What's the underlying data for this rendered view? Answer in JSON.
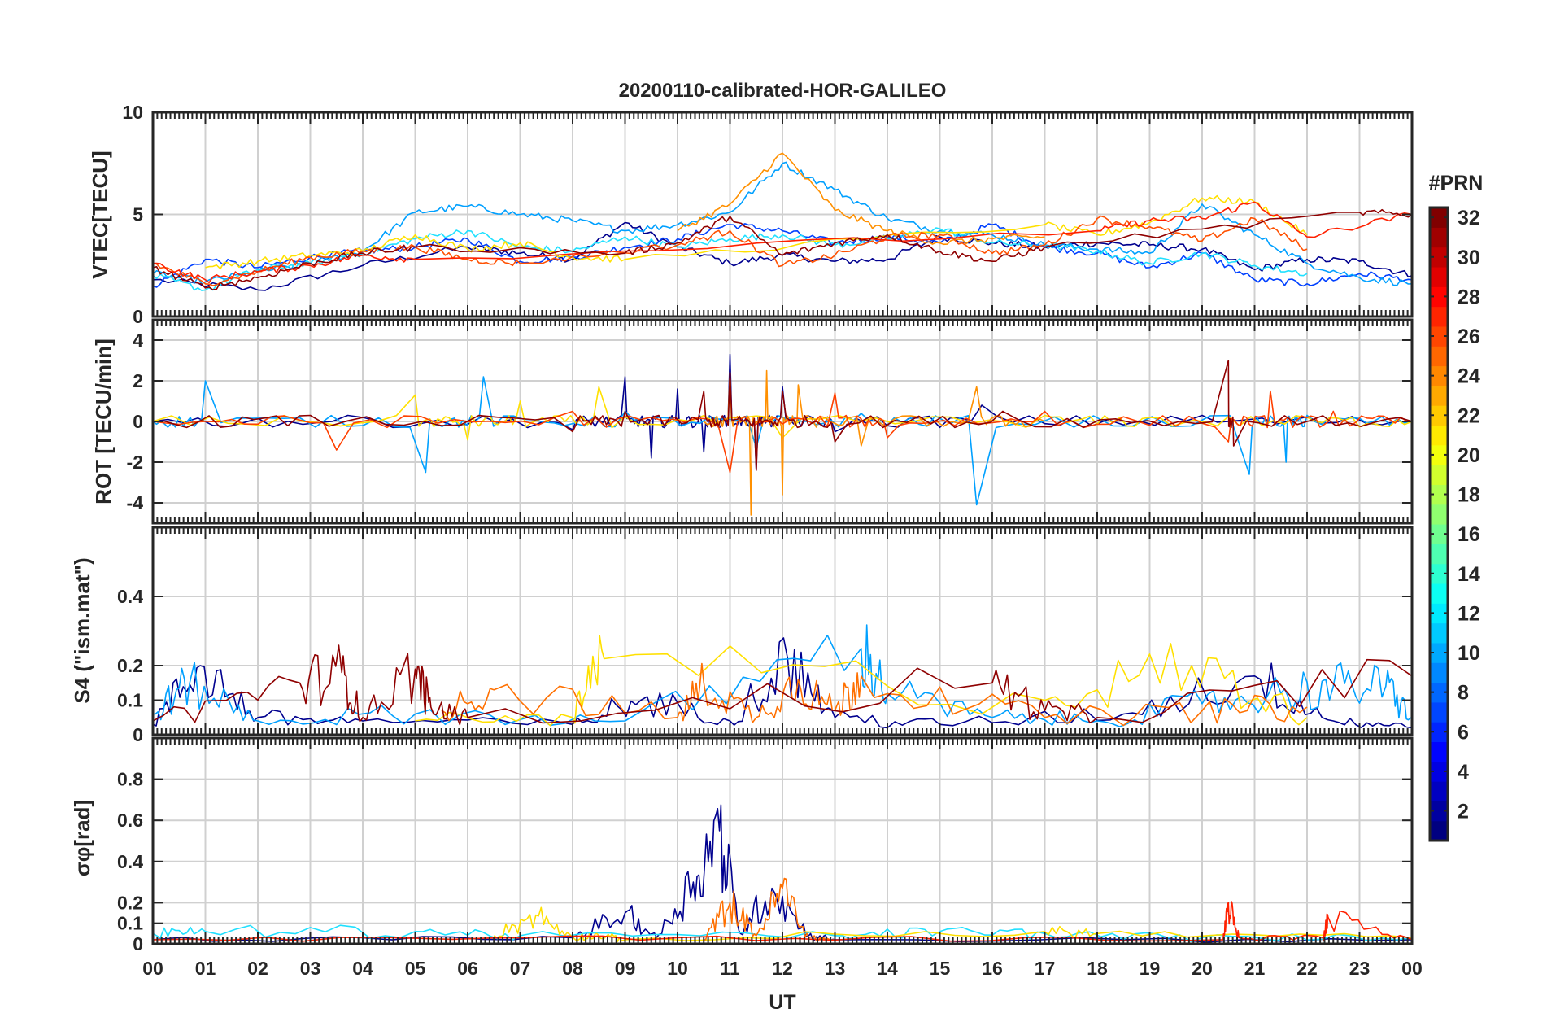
{
  "title": "20200110-calibrated-HOR-GALILEO",
  "xlabel": "UT",
  "x_ticks": [
    "00",
    "01",
    "02",
    "03",
    "04",
    "05",
    "06",
    "07",
    "08",
    "09",
    "10",
    "11",
    "12",
    "13",
    "14",
    "15",
    "16",
    "17",
    "18",
    "19",
    "20",
    "21",
    "22",
    "23",
    "00"
  ],
  "colorbar": {
    "label": "#PRN",
    "range": [
      1,
      32
    ],
    "ticks": [
      "2",
      "4",
      "6",
      "8",
      "10",
      "12",
      "14",
      "16",
      "18",
      "20",
      "22",
      "24",
      "26",
      "28",
      "30",
      "32"
    ],
    "colormap": "jet"
  },
  "chart_data": [
    {
      "type": "line",
      "name": "vtec",
      "ylabel": "VTEC[TECU]",
      "xlim": [
        0,
        24
      ],
      "ylim": [
        0,
        10
      ],
      "y_ticks": [
        "0",
        "5",
        "10"
      ],
      "series": [
        {
          "name": "PRN 2",
          "prn": 2,
          "color": "#00008f",
          "x": [
            0,
            2,
            4,
            6,
            7,
            8,
            9,
            10,
            11,
            12,
            13,
            14,
            15,
            16,
            17,
            18,
            19,
            20,
            21,
            22,
            23,
            24
          ],
          "values": [
            1.8,
            1.3,
            2.5,
            3.4,
            3.1,
            2.8,
            4.6,
            3.4,
            2.6,
            3.0,
            2.7,
            2.8,
            3.9,
            3.6,
            3.4,
            3.6,
            3.5,
            3.3,
            2.3,
            2.8,
            2.7,
            2.0
          ]
        },
        {
          "name": "PRN 5",
          "prn": 5,
          "color": "#0040ff",
          "x": [
            0,
            1,
            2,
            3,
            4,
            5,
            6,
            7,
            8,
            9,
            10,
            11,
            12,
            13,
            14,
            15,
            16,
            17,
            18,
            19,
            20,
            21,
            22,
            23,
            24
          ],
          "values": [
            1.5,
            2.8,
            2.4,
            2.9,
            3.2,
            3.4,
            3.8,
            2.7,
            2.9,
            3.4,
            3.8,
            4.5,
            4.2,
            3.6,
            3.9,
            3.6,
            4.5,
            3.4,
            3.1,
            2.4,
            3.1,
            1.8,
            1.6,
            2.1,
            1.8
          ]
        },
        {
          "name": "PRN 9",
          "prn": 9,
          "color": "#00a0ff",
          "x": [
            0,
            1,
            2,
            3,
            4,
            5,
            6,
            7,
            8,
            9,
            10,
            11,
            12,
            13,
            14,
            15,
            16,
            17,
            18,
            19,
            20,
            21,
            22,
            23,
            24
          ],
          "values": [
            2.1,
            1.7,
            2.2,
            2.6,
            3.2,
            5.1,
            5.4,
            5.0,
            4.7,
            4.2,
            4.5,
            5.1,
            7.5,
            6.2,
            4.8,
            4.2,
            4.0,
            3.5,
            3.3,
            3.1,
            5.5,
            4.0,
            2.6,
            1.9,
            1.6
          ]
        },
        {
          "name": "PRN 13",
          "prn": 13,
          "color": "#20e0ff",
          "x": [
            0,
            1,
            2,
            3,
            4,
            5,
            6,
            7,
            8,
            9,
            10,
            11,
            12,
            13,
            14,
            15,
            16,
            17,
            18,
            19,
            20,
            21,
            22
          ],
          "values": [
            2.0,
            1.3,
            2.3,
            2.6,
            3.1,
            3.8,
            4.2,
            3.4,
            3.2,
            3.9,
            3.4,
            3.8,
            4.0,
            3.5,
            3.8,
            4.3,
            3.6,
            3.5,
            3.2,
            2.6,
            3.1,
            2.5,
            2.1
          ]
        },
        {
          "name": "PRN 20",
          "prn": 20,
          "color": "#ffe000",
          "x": [
            1,
            2,
            3,
            4,
            5,
            6,
            7,
            8,
            9,
            17,
            18,
            19,
            20,
            21,
            22
          ],
          "values": [
            2.4,
            2.7,
            3.0,
            3.2,
            4.0,
            3.3,
            3.6,
            2.9,
            2.8,
            4.5,
            4.0,
            4.6,
            5.8,
            5.6,
            4.0
          ]
        },
        {
          "name": "PRN 23",
          "prn": 23,
          "color": "#ff9000",
          "x": [
            10,
            11,
            12,
            13,
            14,
            15,
            16,
            17
          ],
          "values": [
            4.2,
            5.5,
            8.0,
            5.2,
            4.2,
            3.6,
            3.8,
            3.9
          ]
        },
        {
          "name": "PRN 25",
          "prn": 25,
          "color": "#ff5000",
          "x": [
            0,
            1,
            2,
            3,
            4,
            5,
            6,
            7,
            10,
            11,
            12,
            13,
            14,
            15,
            16,
            17,
            18,
            19,
            20,
            21,
            22
          ],
          "values": [
            2.6,
            1.6,
            2.2,
            2.9,
            3.2,
            3.4,
            2.8,
            2.6,
            3.5,
            4.2,
            2.5,
            3.0,
            3.9,
            4.0,
            3.1,
            3.5,
            4.8,
            4.4,
            3.7,
            4.8,
            3.3
          ]
        },
        {
          "name": "PRN 27",
          "prn": 27,
          "color": "#ff2000",
          "x": [
            0,
            1,
            2,
            3,
            4,
            5,
            18,
            19,
            20,
            21,
            22,
            24
          ],
          "values": [
            2.6,
            1.8,
            2.2,
            2.5,
            3.0,
            2.8,
            4.2,
            4.7,
            4.8,
            5.6,
            3.9,
            5.0
          ]
        },
        {
          "name": "PRN 31",
          "prn": 31,
          "color": "#8f0000",
          "x": [
            0,
            1,
            2,
            3,
            4,
            5,
            9,
            10,
            11,
            12,
            13,
            14,
            15,
            16,
            17,
            23,
            24
          ],
          "values": [
            2.4,
            1.4,
            1.9,
            2.6,
            3.1,
            3.4,
            3.1,
            3.6,
            4.9,
            3.0,
            3.6,
            4.0,
            3.2,
            2.7,
            3.4,
            5.1,
            5.0
          ]
        }
      ]
    },
    {
      "type": "line",
      "name": "rot",
      "ylabel": "ROT [TECU/min]",
      "xlim": [
        0,
        24
      ],
      "ylim": [
        -5,
        5
      ],
      "y_ticks": [
        "-4",
        "-2",
        "0",
        "2",
        "4"
      ],
      "series": [
        {
          "name": "PRN 2",
          "prn": 2,
          "color": "#00008f",
          "x": [
            0,
            4,
            8,
            9,
            9.5,
            10,
            10.5,
            11,
            11.5,
            12,
            13,
            15.8,
            20,
            24
          ],
          "values": [
            0,
            0.2,
            -0.4,
            2.2,
            -1.8,
            1.6,
            -1.5,
            3.3,
            -2.4,
            1.7,
            -0.5,
            0.8,
            0.3,
            0
          ]
        },
        {
          "name": "PRN 9",
          "prn": 9,
          "color": "#00a0ff",
          "x": [
            0,
            1,
            5.2,
            6.3,
            9,
            11.5,
            13.5,
            15.7,
            20.9,
            21.6,
            22,
            24
          ],
          "values": [
            0,
            2.0,
            -2.5,
            2.2,
            0.5,
            -1.3,
            0.4,
            -4.1,
            -2.6,
            -2.0,
            0.3,
            0
          ]
        },
        {
          "name": "PRN 20",
          "prn": 20,
          "color": "#ffe000",
          "x": [
            0,
            5,
            6,
            7,
            8.5,
            12,
            17,
            19,
            22,
            24
          ],
          "values": [
            0,
            1.3,
            -0.9,
            1.0,
            1.7,
            -0.8,
            0.3,
            0.2,
            0.2,
            0
          ]
        },
        {
          "name": "PRN 23",
          "prn": 23,
          "color": "#ff9000",
          "x": [
            10.5,
            11,
            11.4,
            11.7,
            12,
            12.3,
            13.5,
            15.7,
            17
          ],
          "values": [
            0,
            2.4,
            -4.6,
            2.5,
            -3.6,
            1.8,
            -1.2,
            1.7,
            0
          ]
        },
        {
          "name": "PRN 26",
          "prn": 26,
          "color": "#ff4000",
          "x": [
            0,
            3.5,
            8,
            11,
            13,
            14,
            17,
            20.5,
            21.3,
            22.5,
            24
          ],
          "values": [
            0,
            -1.4,
            0.5,
            -2.5,
            1.4,
            -0.8,
            0.5,
            -1.0,
            1.5,
            0.5,
            0
          ]
        },
        {
          "name": "PRN 31",
          "prn": 31,
          "color": "#8f0000",
          "x": [
            0,
            3,
            8,
            9,
            10.5,
            11,
            11.5,
            12,
            13,
            16.2,
            20.5,
            20.6,
            24
          ],
          "values": [
            0,
            0.3,
            -0.5,
            0.5,
            1.5,
            2.4,
            -2.4,
            1.5,
            -1.0,
            0.5,
            3.0,
            -1.2,
            0
          ]
        }
      ]
    },
    {
      "type": "line",
      "name": "s4",
      "ylabel": "S4 (\"ism.mat\")",
      "xlim": [
        0,
        24
      ],
      "ylim": [
        0,
        0.6
      ],
      "y_ticks": [
        "0",
        "0.1",
        "0.2",
        "0.4"
      ],
      "series": [
        {
          "name": "PRN 2",
          "prn": 2,
          "color": "#00008f",
          "x": [
            0,
            0.9,
            2,
            4,
            8,
            9.3,
            11,
            12.1,
            13,
            15,
            18.5,
            21,
            22.5,
            24
          ],
          "values": [
            0.03,
            0.2,
            0.05,
            0.04,
            0.03,
            0.1,
            0.04,
            0.22,
            0.05,
            0.03,
            0.06,
            0.17,
            0.04,
            0.02
          ]
        },
        {
          "name": "PRN 9",
          "prn": 9,
          "color": "#00a0ff",
          "x": [
            0,
            0.7,
            2,
            5,
            9,
            13.5,
            14,
            16,
            18,
            20,
            21.5,
            22.5,
            23.5,
            24
          ],
          "values": [
            0.06,
            0.15,
            0.04,
            0.06,
            0.04,
            0.25,
            0.12,
            0.05,
            0.04,
            0.09,
            0.12,
            0.14,
            0.14,
            0.05
          ]
        },
        {
          "name": "PRN 20",
          "prn": 20,
          "color": "#ffe000",
          "x": [
            5,
            8,
            8.6,
            17,
            19.8,
            22
          ],
          "values": [
            0.04,
            0.05,
            0.22,
            0.1,
            0.2,
            0.05
          ]
        },
        {
          "name": "PRN 24",
          "prn": 24,
          "color": "#ff7000",
          "x": [
            5.5,
            6.5,
            10,
            10.5,
            11.5,
            12.3,
            13,
            13.5,
            17,
            20,
            22
          ],
          "values": [
            0.07,
            0.13,
            0.05,
            0.15,
            0.05,
            0.16,
            0.07,
            0.17,
            0.05,
            0.07,
            0.08
          ]
        },
        {
          "name": "PRN 31",
          "prn": 31,
          "color": "#8f0000",
          "x": [
            0,
            2.8,
            3.6,
            4,
            5,
            5.3,
            6,
            16,
            17,
            18,
            24
          ],
          "values": [
            0.04,
            0.15,
            0.18,
            0.05,
            0.19,
            0.08,
            0.05,
            0.15,
            0.07,
            0.05,
            0.17
          ]
        }
      ]
    },
    {
      "type": "line",
      "name": "sigma_phi",
      "ylabel": "σφ[rad]",
      "xlim": [
        0,
        24
      ],
      "ylim": [
        0,
        1
      ],
      "y_ticks": [
        "0",
        "0.1",
        "0.2",
        "0.4",
        "0.6",
        "0.8"
      ],
      "series": [
        {
          "name": "PRN 2",
          "prn": 2,
          "color": "#00008f",
          "x": [
            0,
            8,
            9,
            9.6,
            10.3,
            10.8,
            11.2,
            11.8,
            12.5,
            13,
            24
          ],
          "values": [
            0.02,
            0.03,
            0.15,
            0.03,
            0.3,
            0.55,
            0.05,
            0.27,
            0.04,
            0.02,
            0.02
          ]
        },
        {
          "name": "PRN 13",
          "prn": 13,
          "color": "#20e0ff",
          "x": [
            0,
            1,
            5,
            7,
            13,
            15,
            17,
            20,
            24
          ],
          "values": [
            0.05,
            0.06,
            0.06,
            0.04,
            0.04,
            0.06,
            0.05,
            0.03,
            0.03
          ]
        },
        {
          "name": "PRN 20",
          "prn": 20,
          "color": "#ffe000",
          "x": [
            6.5,
            7.3,
            8,
            8.5,
            9,
            17,
            18,
            24
          ],
          "values": [
            0.04,
            0.14,
            0.03,
            0.04,
            0.02,
            0.06,
            0.05,
            0.03
          ]
        },
        {
          "name": "PRN 24",
          "prn": 24,
          "color": "#ff7000",
          "x": [
            10.5,
            11,
            11.5,
            12,
            12.5,
            13
          ],
          "values": [
            0.02,
            0.2,
            0.04,
            0.27,
            0.03,
            0.02
          ]
        },
        {
          "name": "PRN 27",
          "prn": 27,
          "color": "#ff2000",
          "x": [
            0,
            10,
            20.4,
            20.5,
            20.7,
            22.3,
            22.4,
            24
          ],
          "values": [
            0.02,
            0.03,
            0.02,
            0.2,
            0.03,
            0.03,
            0.13,
            0.02
          ]
        }
      ]
    }
  ]
}
